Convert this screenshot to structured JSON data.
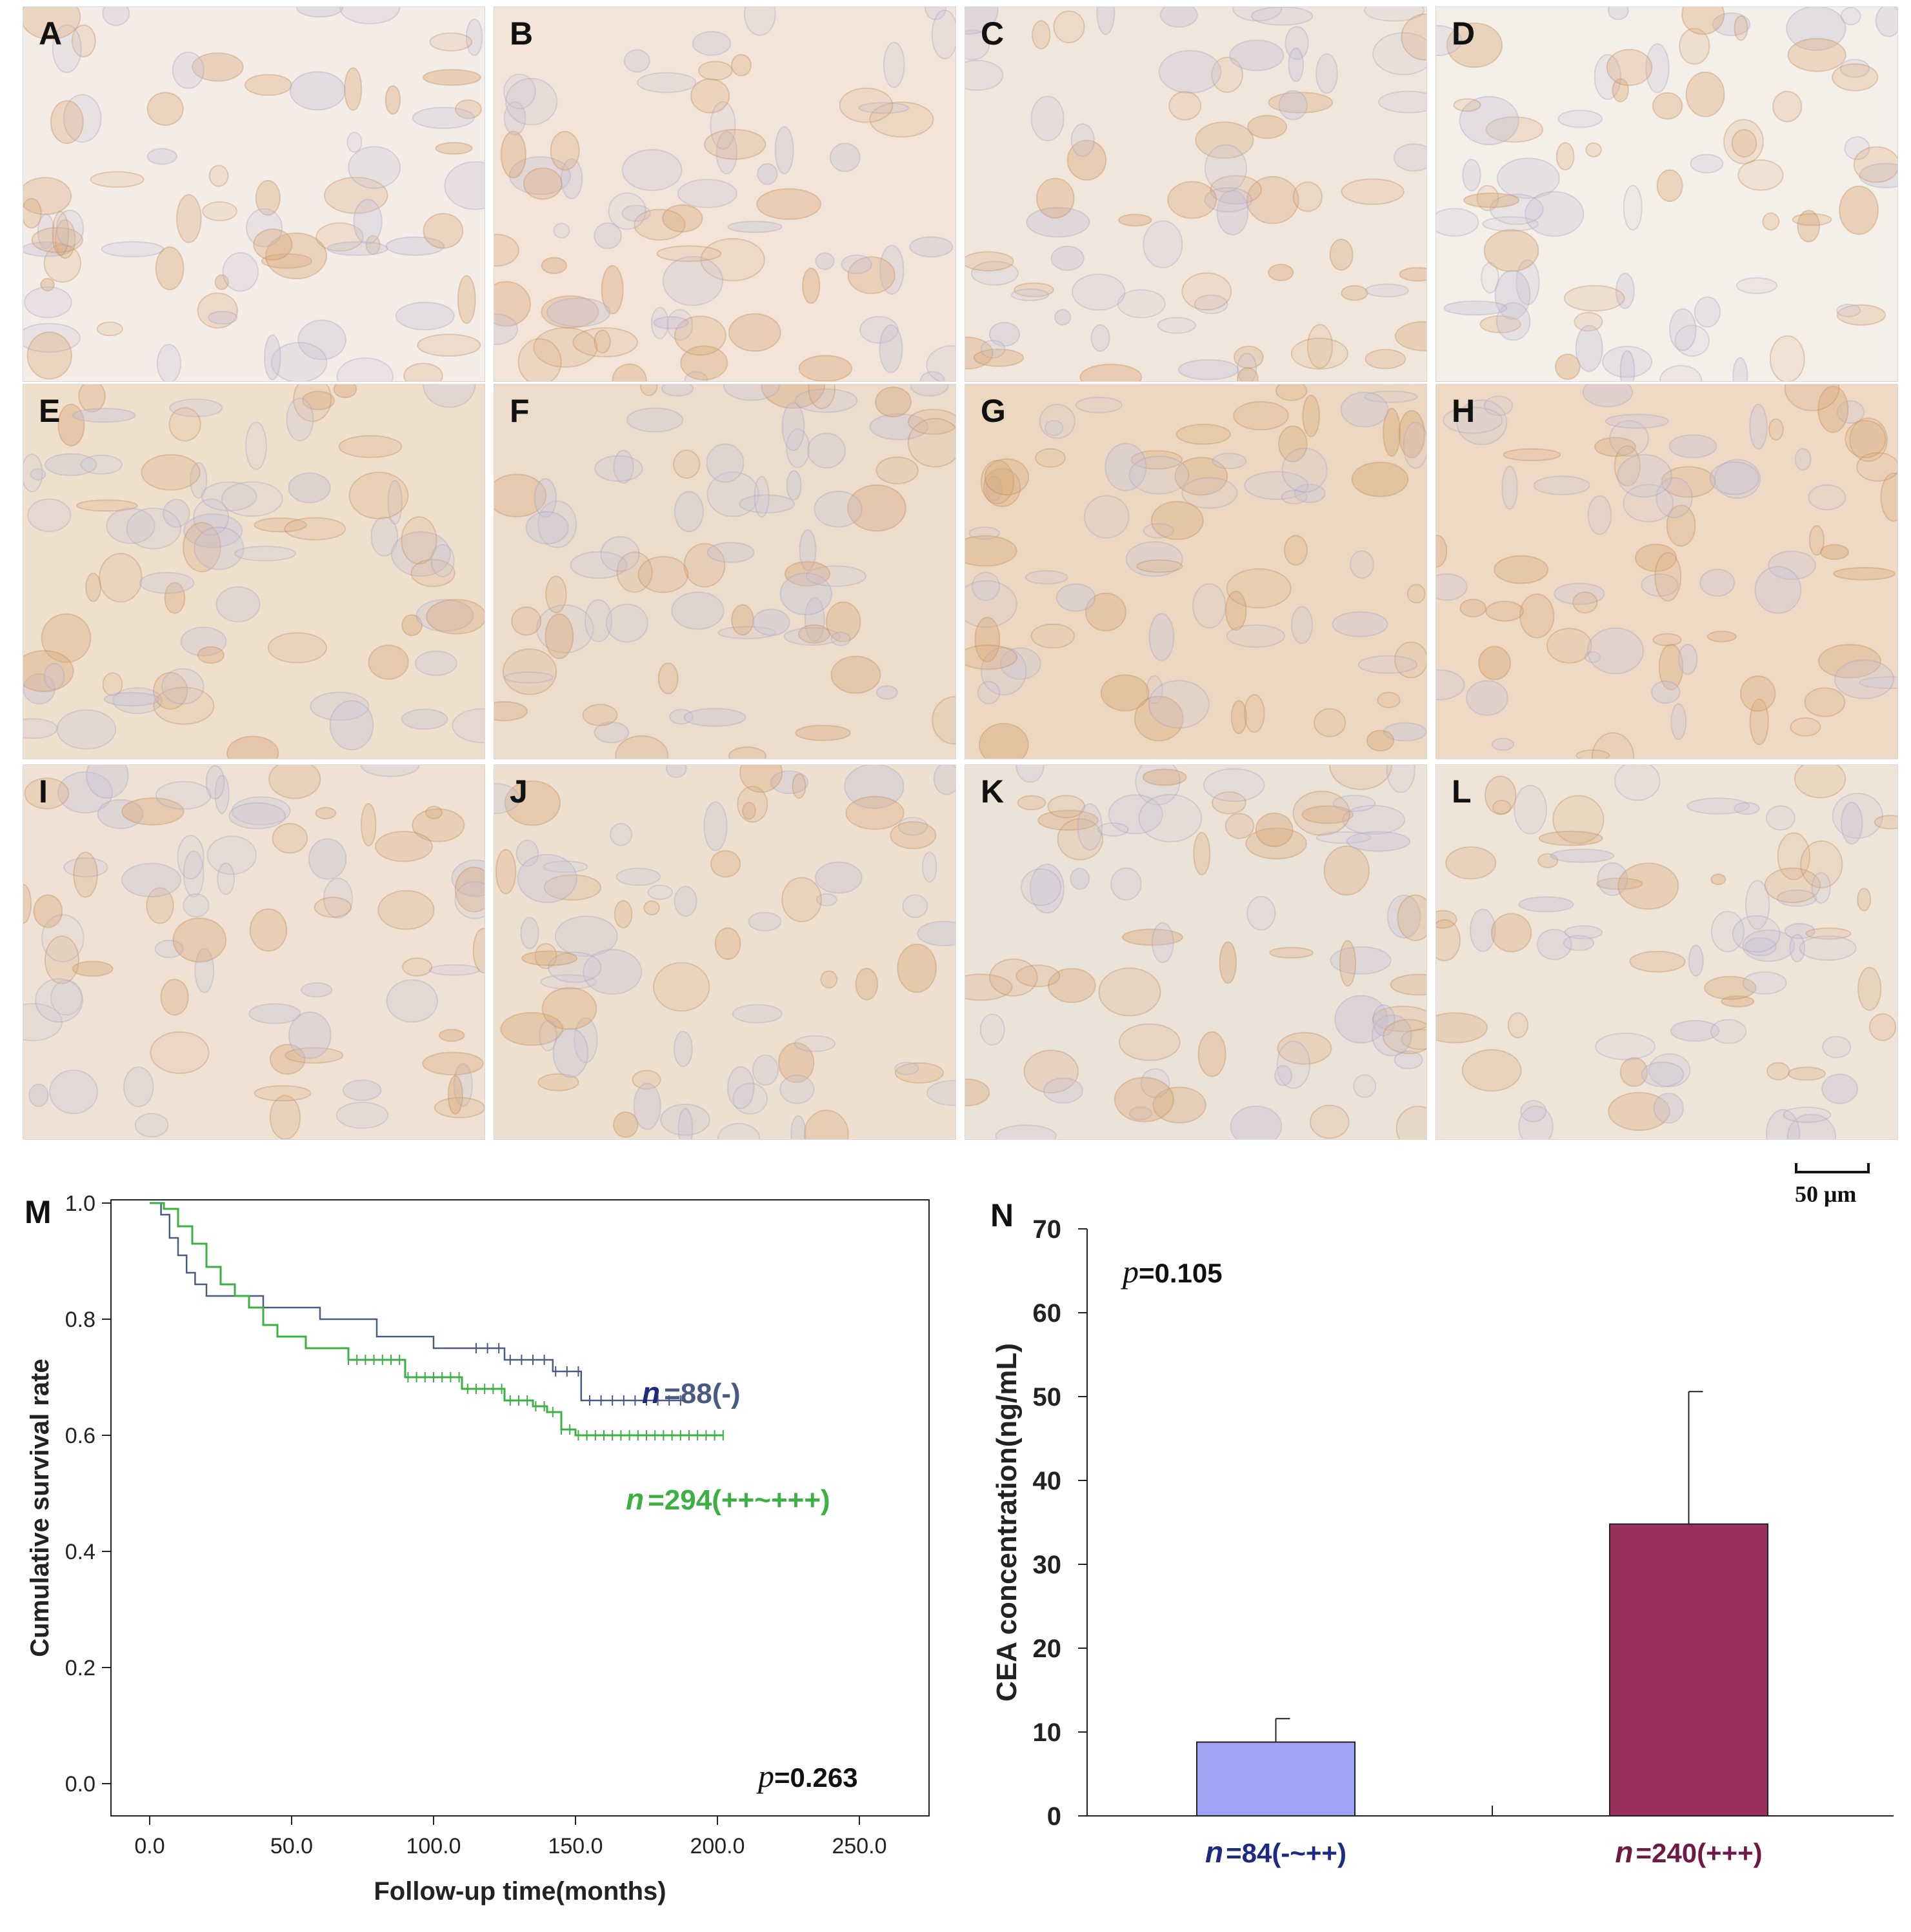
{
  "panels": [
    {
      "label": "A",
      "tone": "#f4ece6"
    },
    {
      "label": "B",
      "tone": "#f2e4d8"
    },
    {
      "label": "C",
      "tone": "#f1e6dc"
    },
    {
      "label": "D",
      "tone": "#f5efe9"
    },
    {
      "label": "E",
      "tone": "#efdfcd"
    },
    {
      "label": "F",
      "tone": "#ebdccc"
    },
    {
      "label": "G",
      "tone": "#ecd8c0"
    },
    {
      "label": "H",
      "tone": "#eed9c4"
    },
    {
      "label": "I",
      "tone": "#efe2d4"
    },
    {
      "label": "J",
      "tone": "#eee0d0"
    },
    {
      "label": "K",
      "tone": "#ebe2d8"
    },
    {
      "label": "L",
      "tone": "#eee4d8"
    }
  ],
  "scale_bar": {
    "label": "50 μm"
  },
  "figure_m": {
    "label": "M"
  },
  "figure_n": {
    "label": "N"
  },
  "chart_data": [
    {
      "type": "line",
      "title": "",
      "xlabel": "Follow-up time(months)",
      "ylabel": "Cumulative survival rate",
      "xlim": [
        0,
        250
      ],
      "ylim": [
        0,
        1.0
      ],
      "xticks": [
        "0.0",
        "50.0",
        "100.0",
        "150.0",
        "200.0",
        "250.0"
      ],
      "yticks": [
        "0.0",
        "0.2",
        "0.4",
        "0.6",
        "0.8",
        "1.0"
      ],
      "pvalue_label": "p",
      "pvalue_value": "=0.263",
      "series": [
        {
          "n_label": "n",
          "name": "=88(-)",
          "color": "#4a5a80",
          "points": [
            [
              0,
              1.0
            ],
            [
              4,
              0.98
            ],
            [
              7,
              0.94
            ],
            [
              10,
              0.91
            ],
            [
              13,
              0.88
            ],
            [
              16,
              0.86
            ],
            [
              20,
              0.84
            ],
            [
              35,
              0.84
            ],
            [
              40,
              0.82
            ],
            [
              60,
              0.8
            ],
            [
              80,
              0.77
            ],
            [
              100,
              0.75
            ],
            [
              125,
              0.73
            ],
            [
              140,
              0.73
            ],
            [
              142,
              0.71
            ],
            [
              150,
              0.71
            ],
            [
              152,
              0.66
            ],
            [
              188,
              0.66
            ]
          ]
        },
        {
          "n_label": "n",
          "name": "=294(++~+++)",
          "color": "#3cb043",
          "points": [
            [
              0,
              1.0
            ],
            [
              5,
              0.99
            ],
            [
              10,
              0.96
            ],
            [
              15,
              0.93
            ],
            [
              20,
              0.89
            ],
            [
              25,
              0.86
            ],
            [
              30,
              0.84
            ],
            [
              35,
              0.82
            ],
            [
              40,
              0.79
            ],
            [
              45,
              0.77
            ],
            [
              55,
              0.75
            ],
            [
              70,
              0.73
            ],
            [
              90,
              0.7
            ],
            [
              110,
              0.68
            ],
            [
              125,
              0.66
            ],
            [
              135,
              0.65
            ],
            [
              140,
              0.64
            ],
            [
              145,
              0.61
            ],
            [
              150,
              0.6
            ],
            [
              202,
              0.6
            ]
          ]
        }
      ]
    },
    {
      "type": "bar",
      "title": "",
      "xlabel": "",
      "ylabel": "CEA concentration(ng/mL)",
      "ylim": [
        0,
        70
      ],
      "yticks": [
        "0",
        "10",
        "20",
        "30",
        "40",
        "50",
        "60",
        "70"
      ],
      "pvalue_label": "p",
      "pvalue_value": "=0.105",
      "categories": [
        {
          "n_label": "n",
          "label": "=84(-~++)",
          "color": "#1c2a80"
        },
        {
          "n_label": "n",
          "label": "=240(+++)",
          "color": "#6e1a45"
        }
      ],
      "values": [
        8.8,
        34.8
      ],
      "errors": [
        2.8,
        15.8
      ],
      "bar_colors": [
        "#9fa3f5",
        "#9b2f5e"
      ]
    }
  ]
}
